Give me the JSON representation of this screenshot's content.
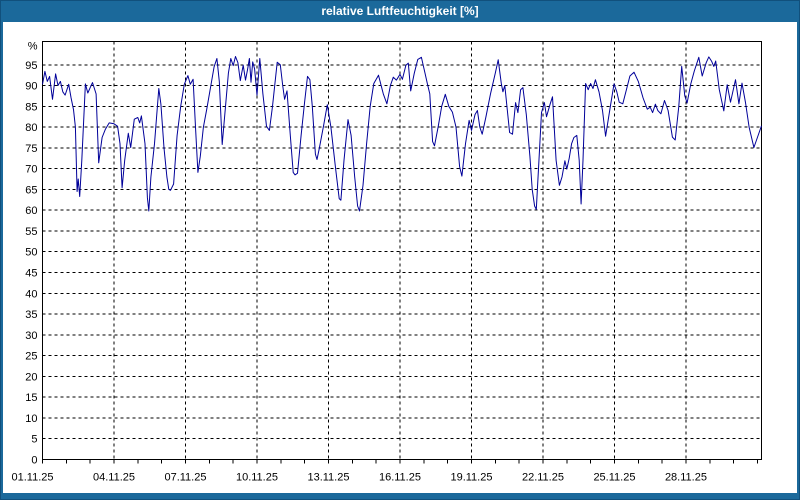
{
  "window": {
    "title": "relative Luftfeuchtigkeit [%]"
  },
  "colors": {
    "titlebar_bg": "#1b699b",
    "titlebar_text": "#ffffff",
    "plot_bg": "#ffffff"
  },
  "chart_data": {
    "type": "line",
    "title": "relative Luftfeuchtigkeit [%]",
    "xlabel": "",
    "ylabel": "%",
    "grid": true,
    "legend": "none",
    "x_tick_labels": [
      "01.11.25",
      "04.11.25",
      "07.11.25",
      "10.11.25",
      "13.11.25",
      "16.11.25",
      "19.11.25",
      "22.11.25",
      "25.11.25",
      "28.11.25"
    ],
    "x_tick_days": [
      0,
      3,
      6,
      9,
      12,
      15,
      18,
      21,
      24,
      27
    ],
    "x_minor_tick_days": [
      0,
      1,
      2,
      3,
      4,
      5,
      6,
      7,
      8,
      9,
      10,
      11,
      12,
      13,
      14,
      15,
      16,
      17,
      18,
      19,
      20,
      21,
      22,
      23,
      24,
      25,
      26,
      27,
      28,
      29,
      30
    ],
    "y_ticks": [
      0,
      5,
      10,
      15,
      20,
      25,
      30,
      35,
      40,
      45,
      50,
      55,
      60,
      65,
      70,
      75,
      80,
      85,
      90,
      95
    ],
    "ylim": [
      0,
      100.6
    ],
    "xlim_days": [
      0,
      30.17
    ],
    "colors": {
      "line": "#000099",
      "grid": "#000000"
    },
    "series": [
      {
        "name": "relative Luftfeuchtigkeit",
        "unit": "%",
        "x_unit": "Tage seit 01.11.25",
        "points": [
          [
            0,
            90.3
          ],
          [
            0.1,
            93.4
          ],
          [
            0.2,
            91
          ],
          [
            0.3,
            92.2
          ],
          [
            0.42,
            86.7
          ],
          [
            0.55,
            92.8
          ],
          [
            0.65,
            90
          ],
          [
            0.75,
            91
          ],
          [
            0.85,
            88.5
          ],
          [
            0.95,
            87.7
          ],
          [
            1.1,
            90.3
          ],
          [
            1.2,
            87
          ],
          [
            1.3,
            84.2
          ],
          [
            1.38,
            80
          ],
          [
            1.45,
            64.5
          ],
          [
            1.5,
            67.5
          ],
          [
            1.56,
            63.3
          ],
          [
            1.65,
            72
          ],
          [
            1.8,
            90.4
          ],
          [
            1.9,
            88.2
          ],
          [
            2,
            89.5
          ],
          [
            2.1,
            90.7
          ],
          [
            2.25,
            88
          ],
          [
            2.36,
            71.4
          ],
          [
            2.5,
            77.5
          ],
          [
            2.64,
            79.5
          ],
          [
            2.8,
            81
          ],
          [
            3,
            80.8
          ],
          [
            3.15,
            80.2
          ],
          [
            3.25,
            76
          ],
          [
            3.34,
            65.4
          ],
          [
            3.45,
            72
          ],
          [
            3.6,
            78.5
          ],
          [
            3.7,
            75.1
          ],
          [
            3.85,
            81.9
          ],
          [
            4,
            82.3
          ],
          [
            4.08,
            81
          ],
          [
            4.15,
            82.7
          ],
          [
            4.3,
            76
          ],
          [
            4.4,
            63
          ],
          [
            4.46,
            59.8
          ],
          [
            4.55,
            68
          ],
          [
            4.7,
            76
          ],
          [
            4.88,
            89.3
          ],
          [
            4.97,
            85.5
          ],
          [
            5.1,
            75
          ],
          [
            5.22,
            68
          ],
          [
            5.3,
            65
          ],
          [
            5.37,
            64.8
          ],
          [
            5.5,
            66.3
          ],
          [
            5.65,
            78
          ],
          [
            5.8,
            85
          ],
          [
            5.95,
            90.3
          ],
          [
            6.1,
            92.4
          ],
          [
            6.2,
            90.3
          ],
          [
            6.32,
            91.5
          ],
          [
            6.42,
            80
          ],
          [
            6.52,
            69.1
          ],
          [
            6.62,
            73
          ],
          [
            6.75,
            80
          ],
          [
            6.9,
            84.5
          ],
          [
            7.05,
            89.5
          ],
          [
            7.2,
            94.5
          ],
          [
            7.32,
            96.5
          ],
          [
            7.42,
            91
          ],
          [
            7.54,
            75.8
          ],
          [
            7.65,
            83
          ],
          [
            7.8,
            93
          ],
          [
            7.9,
            96.5
          ],
          [
            8,
            94.8
          ],
          [
            8.1,
            97
          ],
          [
            8.2,
            95.5
          ],
          [
            8.3,
            91.2
          ],
          [
            8.42,
            94.9
          ],
          [
            8.52,
            91.3
          ],
          [
            8.6,
            93.8
          ],
          [
            8.68,
            96.5
          ],
          [
            8.75,
            90.8
          ],
          [
            8.82,
            95.7
          ],
          [
            8.9,
            94
          ],
          [
            9,
            87.7
          ],
          [
            9.12,
            96.5
          ],
          [
            9.25,
            88
          ],
          [
            9.4,
            80.2
          ],
          [
            9.52,
            79.2
          ],
          [
            9.65,
            85
          ],
          [
            9.85,
            95.6
          ],
          [
            9.98,
            95
          ],
          [
            10.08,
            90
          ],
          [
            10.16,
            86.7
          ],
          [
            10.26,
            88.7
          ],
          [
            10.4,
            78
          ],
          [
            10.52,
            69.1
          ],
          [
            10.6,
            68.5
          ],
          [
            10.7,
            68.9
          ],
          [
            10.85,
            78
          ],
          [
            11,
            86
          ],
          [
            11.12,
            92.2
          ],
          [
            11.22,
            91.4
          ],
          [
            11.32,
            85
          ],
          [
            11.45,
            73.5
          ],
          [
            11.52,
            72.2
          ],
          [
            11.62,
            75
          ],
          [
            11.8,
            80.5
          ],
          [
            11.95,
            85.4
          ],
          [
            12.1,
            80
          ],
          [
            12.3,
            70
          ],
          [
            12.45,
            62.8
          ],
          [
            12.52,
            62.4
          ],
          [
            12.65,
            72
          ],
          [
            12.82,
            81.8
          ],
          [
            12.95,
            78
          ],
          [
            13.1,
            68
          ],
          [
            13.22,
            61
          ],
          [
            13.3,
            59.8
          ],
          [
            13.45,
            66
          ],
          [
            13.6,
            76
          ],
          [
            13.75,
            85
          ],
          [
            13.9,
            90.5
          ],
          [
            14.1,
            92.5
          ],
          [
            14.3,
            88
          ],
          [
            14.45,
            85.6
          ],
          [
            14.6,
            90
          ],
          [
            14.72,
            92
          ],
          [
            14.85,
            91.3
          ],
          [
            15,
            92.7
          ],
          [
            15.1,
            91.5
          ],
          [
            15.25,
            94.9
          ],
          [
            15.35,
            95.4
          ],
          [
            15.45,
            88.7
          ],
          [
            15.6,
            93
          ],
          [
            15.75,
            96.3
          ],
          [
            15.9,
            96.8
          ],
          [
            16.05,
            93
          ],
          [
            16.15,
            90.4
          ],
          [
            16.25,
            88
          ],
          [
            16.37,
            76.5
          ],
          [
            16.45,
            75.5
          ],
          [
            16.6,
            80
          ],
          [
            16.75,
            85
          ],
          [
            16.9,
            87.9
          ],
          [
            17.05,
            85
          ],
          [
            17.2,
            83.6
          ],
          [
            17.35,
            80
          ],
          [
            17.5,
            70.5
          ],
          [
            17.6,
            68.2
          ],
          [
            17.75,
            76
          ],
          [
            17.9,
            81.6
          ],
          [
            18,
            79.2
          ],
          [
            18.15,
            83
          ],
          [
            18.25,
            84
          ],
          [
            18.35,
            80
          ],
          [
            18.45,
            78.3
          ],
          [
            18.6,
            82.3
          ],
          [
            18.8,
            88
          ],
          [
            19,
            93
          ],
          [
            19.12,
            96.2
          ],
          [
            19.25,
            90.5
          ],
          [
            19.32,
            88.5
          ],
          [
            19.4,
            90
          ],
          [
            19.6,
            78.7
          ],
          [
            19.72,
            78.3
          ],
          [
            19.85,
            85.9
          ],
          [
            19.95,
            83.5
          ],
          [
            20.06,
            89
          ],
          [
            20.16,
            89.5
          ],
          [
            20.3,
            83
          ],
          [
            20.45,
            73
          ],
          [
            20.55,
            65
          ],
          [
            20.65,
            61
          ],
          [
            20.72,
            60.2
          ],
          [
            20.85,
            74
          ],
          [
            20.94,
            83.5
          ],
          [
            21.06,
            85.9
          ],
          [
            21.15,
            82.5
          ],
          [
            21.3,
            85.5
          ],
          [
            21.4,
            87.3
          ],
          [
            21.55,
            72
          ],
          [
            21.69,
            66
          ],
          [
            21.8,
            68
          ],
          [
            21.92,
            71.9
          ],
          [
            22,
            69.9
          ],
          [
            22.1,
            72.5
          ],
          [
            22.2,
            76
          ],
          [
            22.3,
            77.5
          ],
          [
            22.42,
            78
          ],
          [
            22.52,
            72
          ],
          [
            22.6,
            61.5
          ],
          [
            22.68,
            72
          ],
          [
            22.79,
            90.5
          ],
          [
            22.9,
            89
          ],
          [
            23,
            90.5
          ],
          [
            23.1,
            89.3
          ],
          [
            23.2,
            91.4
          ],
          [
            23.35,
            88.5
          ],
          [
            23.5,
            84
          ],
          [
            23.63,
            77.8
          ],
          [
            23.8,
            84
          ],
          [
            23.98,
            90.4
          ],
          [
            24.1,
            88.5
          ],
          [
            24.2,
            86
          ],
          [
            24.35,
            85.6
          ],
          [
            24.5,
            89
          ],
          [
            24.65,
            92.3
          ],
          [
            24.82,
            93.2
          ],
          [
            25,
            91
          ],
          [
            25.2,
            87
          ],
          [
            25.38,
            84.3
          ],
          [
            25.5,
            84.8
          ],
          [
            25.6,
            83.5
          ],
          [
            25.72,
            85.5
          ],
          [
            25.82,
            84
          ],
          [
            25.95,
            83.2
          ],
          [
            26.1,
            86.4
          ],
          [
            26.25,
            84
          ],
          [
            26.43,
            77.6
          ],
          [
            26.55,
            76.9
          ],
          [
            26.7,
            85
          ],
          [
            26.82,
            94.6
          ],
          [
            26.95,
            87.5
          ],
          [
            27.05,
            85.8
          ],
          [
            27.2,
            90.3
          ],
          [
            27.35,
            93.5
          ],
          [
            27.54,
            96.8
          ],
          [
            27.68,
            92.3
          ],
          [
            27.85,
            95.5
          ],
          [
            27.96,
            96.9
          ],
          [
            28.08,
            95.8
          ],
          [
            28.17,
            94.6
          ],
          [
            28.25,
            95.9
          ],
          [
            28.4,
            89
          ],
          [
            28.59,
            83.9
          ],
          [
            28.73,
            90.2
          ],
          [
            28.87,
            86
          ],
          [
            29.08,
            91.4
          ],
          [
            29.22,
            85.6
          ],
          [
            29.35,
            90.6
          ],
          [
            29.5,
            85.9
          ],
          [
            29.65,
            80
          ],
          [
            29.85,
            75.1
          ],
          [
            30,
            77.5
          ],
          [
            30.17,
            80.3
          ]
        ]
      }
    ]
  }
}
